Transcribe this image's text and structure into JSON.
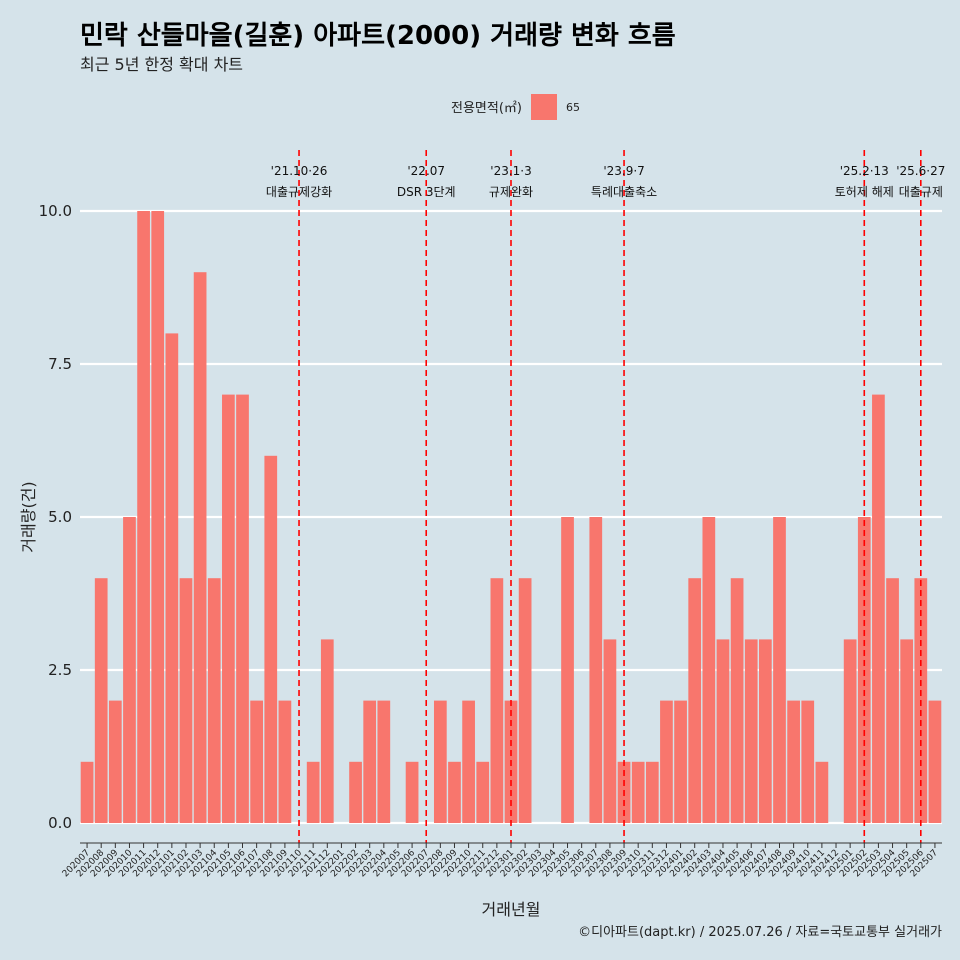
{
  "chart_data": {
    "type": "bar",
    "title": "민락 산들마을(길훈) 아파트(2000) 거래량 변화 흐름",
    "subtitle": "최근 5년 한정 확대 차트",
    "xlabel": "거래년월",
    "ylabel": "거래량(건)",
    "ylim": [
      -0.4,
      10.9
    ],
    "yticks": [
      "0.0",
      "2.5",
      "5.0",
      "7.5",
      "10.0"
    ],
    "ytick_values": [
      0,
      2.5,
      5,
      7.5,
      10
    ],
    "legend": {
      "title": "전용면적(㎡)",
      "label": "65",
      "color": "#f8766d",
      "placement": "top-center"
    },
    "grid": true,
    "categories": [
      "202007",
      "202008",
      "202009",
      "202010",
      "202011",
      "202012",
      "202101",
      "202102",
      "202103",
      "202104",
      "202105",
      "202106",
      "202107",
      "202108",
      "202109",
      "202110",
      "202111",
      "202112",
      "202201",
      "202202",
      "202203",
      "202204",
      "202205",
      "202206",
      "202207",
      "202208",
      "202209",
      "202210",
      "202211",
      "202212",
      "202301",
      "202302",
      "202303",
      "202304",
      "202305",
      "202306",
      "202307",
      "202308",
      "202309",
      "202310",
      "202311",
      "202312",
      "202401",
      "202402",
      "202403",
      "202404",
      "202405",
      "202406",
      "202407",
      "202408",
      "202409",
      "202410",
      "202411",
      "202412",
      "202501",
      "202502",
      "202503",
      "202504",
      "202505",
      "202506",
      "202507"
    ],
    "values": [
      1,
      4,
      2,
      5,
      10,
      10,
      8,
      4,
      9,
      4,
      7,
      7,
      2,
      6,
      2,
      0,
      1,
      3,
      0,
      1,
      2,
      2,
      0,
      1,
      0,
      2,
      1,
      2,
      1,
      4,
      2,
      4,
      0,
      0,
      5,
      0,
      5,
      3,
      1,
      1,
      1,
      2,
      2,
      4,
      5,
      3,
      4,
      3,
      3,
      5,
      2,
      2,
      1,
      0,
      3,
      5,
      7,
      4,
      3,
      4,
      2
    ],
    "events": [
      {
        "position": 15.5,
        "date": "'21.10·26",
        "label": "대출규제강화"
      },
      {
        "position": 24.5,
        "date": "'22.07",
        "label": "DSR 3단계"
      },
      {
        "position": 30.5,
        "date": "'23.1·3",
        "label": "규제완화"
      },
      {
        "position": 38.5,
        "date": "'23.9·7",
        "label": "특례대출축소"
      },
      {
        "position": 55.5,
        "date": "'25.2·13",
        "label": "토허제 해제"
      },
      {
        "position": 59.5,
        "date": "'25.6·27",
        "label": "대출규제"
      }
    ],
    "colors": {
      "bar": "#f8766d",
      "event_line": "#ff0000",
      "grid": "#ffffff",
      "background": "#d5e3ea"
    }
  },
  "caption": "©디아파트(dapt.kr) / 2025.07.26 / 자료=국토교통부 실거래가"
}
